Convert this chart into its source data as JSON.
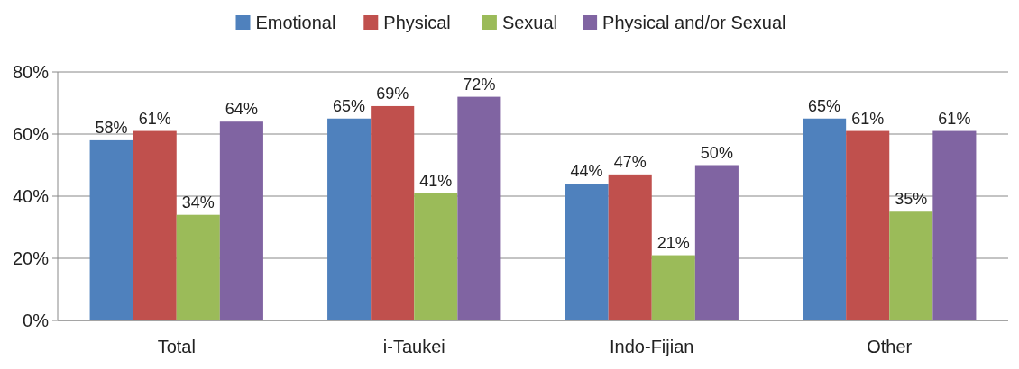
{
  "chart_data": {
    "type": "bar",
    "categories": [
      "Total",
      "i-Taukei",
      "Indo-Fijian",
      "Other"
    ],
    "series": [
      {
        "name": "Emotional",
        "color": "#4f81bd",
        "values": [
          58,
          65,
          44,
          65
        ],
        "value_labels": [
          "58%",
          "65%",
          "44%",
          "65%"
        ]
      },
      {
        "name": "Physical",
        "color": "#c0504d",
        "values": [
          61,
          69,
          47,
          61
        ],
        "value_labels": [
          "61%",
          "69%",
          "47%",
          "61%"
        ]
      },
      {
        "name": "Sexual",
        "color": "#9bbb59",
        "values": [
          34,
          41,
          21,
          35
        ],
        "value_labels": [
          "34%",
          "41%",
          "21%",
          "35%"
        ]
      },
      {
        "name": "Physical and/or Sexual",
        "color": "#8064a2",
        "values": [
          64,
          72,
          50,
          61
        ],
        "value_labels": [
          "64%",
          "72%",
          "50%",
          "61%"
        ]
      }
    ],
    "ylim": [
      0,
      80
    ],
    "yticks": [
      {
        "value": 0,
        "label": "0%"
      },
      {
        "value": 20,
        "label": "20%"
      },
      {
        "value": 40,
        "label": "40%"
      },
      {
        "value": 60,
        "label": "60%"
      },
      {
        "value": 80,
        "label": "80%"
      }
    ],
    "grid": "y",
    "legend": "top"
  }
}
